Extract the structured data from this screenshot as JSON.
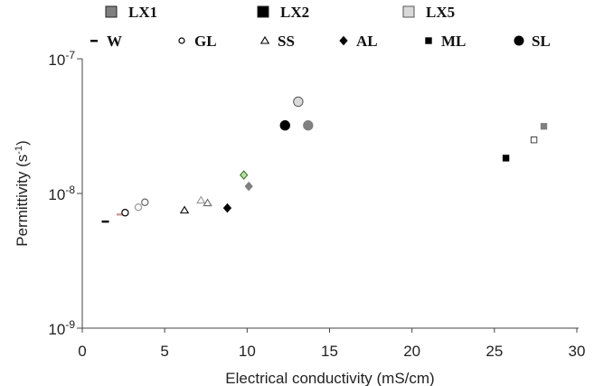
{
  "chart_data": {
    "type": "scatter",
    "xlabel": "Electrical conductivity (mS/cm)",
    "ylabel": "Permittivity (s",
    "ylabel_sup": "-1",
    "ylabel_close": ")",
    "xlim": [
      0,
      30
    ],
    "ylim": [
      1e-09,
      1e-07
    ],
    "yscale": "log",
    "x_ticks": [
      {
        "value": 0,
        "label": "0"
      },
      {
        "value": 5,
        "label": "5"
      },
      {
        "value": 10,
        "label": "10"
      },
      {
        "value": 15,
        "label": "15"
      },
      {
        "value": 20,
        "label": "20"
      },
      {
        "value": 25,
        "label": "25"
      },
      {
        "value": 30,
        "label": "30"
      }
    ],
    "y_ticks": [
      {
        "value": 1e-09,
        "base": "10",
        "exp": "-9"
      },
      {
        "value": 1e-08,
        "base": "10",
        "exp": "-8"
      },
      {
        "value": 1e-07,
        "base": "10",
        "exp": "-7"
      }
    ],
    "legend_colors": [
      {
        "label": "LX1",
        "color": "#808080"
      },
      {
        "label": "LX2",
        "color": "#000000"
      },
      {
        "label": "LX5",
        "color": "#d9d9d9"
      }
    ],
    "legend_shapes": [
      {
        "label": "W",
        "shape": "dash"
      },
      {
        "label": "GL",
        "shape": "circle-open"
      },
      {
        "label": "SS",
        "shape": "triangle-open"
      },
      {
        "label": "AL",
        "shape": "diamond"
      },
      {
        "label": "ML",
        "shape": "square"
      },
      {
        "label": "SL",
        "shape": "circle-large"
      }
    ],
    "points": [
      {
        "group": "W",
        "sample": "LX2",
        "x": 1.4,
        "y": 6.2e-09
      },
      {
        "group": "W",
        "sample": "LX5",
        "x": 2.3,
        "y": 7e-09
      },
      {
        "group": "GL",
        "sample": "LX2",
        "x": 2.6,
        "y": 7.2e-09
      },
      {
        "group": "GL",
        "sample": "LX5",
        "x": 3.4,
        "y": 7.9e-09
      },
      {
        "group": "GL",
        "sample": "LX1",
        "x": 3.8,
        "y": 8.6e-09
      },
      {
        "group": "SS",
        "sample": "LX2",
        "x": 6.2,
        "y": 7.5e-09
      },
      {
        "group": "SS",
        "sample": "LX5",
        "x": 7.2,
        "y": 8.9e-09
      },
      {
        "group": "SS",
        "sample": "LX1",
        "x": 7.6,
        "y": 8.5e-09
      },
      {
        "group": "AL",
        "sample": "LX2",
        "x": 8.8,
        "y": 7.8e-09
      },
      {
        "group": "AL",
        "sample": "LX5",
        "x": 9.8,
        "y": 1.37e-08
      },
      {
        "group": "AL",
        "sample": "LX1",
        "x": 10.1,
        "y": 1.13e-08
      },
      {
        "group": "SL",
        "sample": "LX2",
        "x": 12.3,
        "y": 3.2e-08
      },
      {
        "group": "SL",
        "sample": "LX5",
        "x": 13.1,
        "y": 4.8e-08
      },
      {
        "group": "SL",
        "sample": "LX1",
        "x": 13.7,
        "y": 3.2e-08
      },
      {
        "group": "ML",
        "sample": "LX2",
        "x": 25.7,
        "y": 1.83e-08
      },
      {
        "group": "ML",
        "sample": "LX5",
        "x": 27.4,
        "y": 2.5e-08
      },
      {
        "group": "ML",
        "sample": "LX1",
        "x": 28.0,
        "y": 3.15e-08
      }
    ]
  }
}
